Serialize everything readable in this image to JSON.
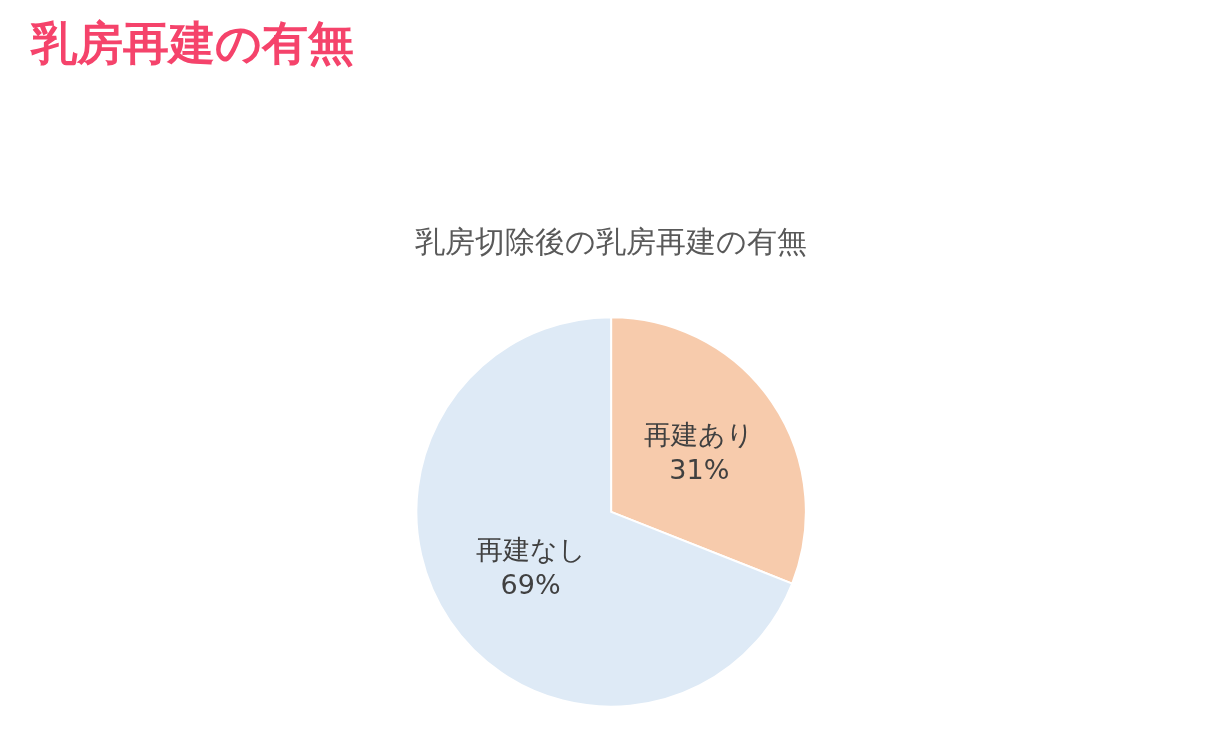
{
  "chart_data": {
    "type": "pie",
    "title": "乳房再建の有無",
    "subtitle": "乳房切除後の乳房再建の有無",
    "categories": [
      "再建あり",
      "再建なし"
    ],
    "values": [
      31,
      69
    ],
    "value_labels": [
      "31%",
      "69%"
    ],
    "colors": [
      "#f7cbac",
      "#deeaf6"
    ],
    "legend": false
  }
}
